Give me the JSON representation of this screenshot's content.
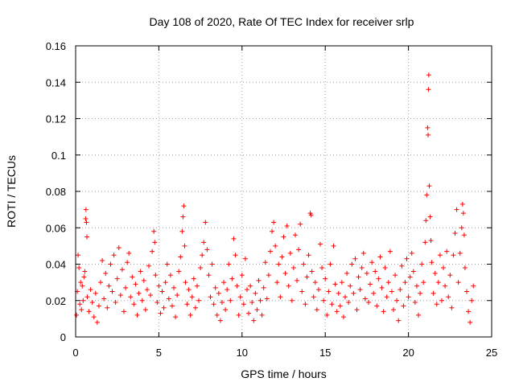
{
  "chart_data": {
    "type": "scatter",
    "title": "Day 108 of 2020, Rate Of TEC Index for receiver srlp",
    "xlabel": "GPS time / hours",
    "ylabel": "ROTI / TECUs",
    "xlim": [
      0,
      25
    ],
    "ylim": [
      0,
      0.16
    ],
    "xticks": [
      0,
      5,
      10,
      15,
      20,
      25
    ],
    "xtick_labels": [
      "0",
      "5",
      "10",
      "15",
      "20",
      "25"
    ],
    "yticks": [
      0,
      0.02,
      0.04,
      0.06,
      0.08,
      0.1,
      0.12,
      0.14,
      0.16
    ],
    "ytick_labels": [
      "0",
      "0.02",
      "0.04",
      "0.06",
      "0.08",
      "0.1",
      "0.12",
      "0.14",
      "0.16"
    ],
    "grid": true,
    "marker": "plus",
    "series": [
      {
        "name": "ROTI",
        "color": "#ff0000",
        "points": [
          [
            0.05,
            0.012
          ],
          [
            0.1,
            0.025
          ],
          [
            0.15,
            0.045
          ],
          [
            0.2,
            0.038
          ],
          [
            0.25,
            0.018
          ],
          [
            0.3,
            0.03
          ],
          [
            0.35,
            0.015
          ],
          [
            0.4,
            0.028
          ],
          [
            0.45,
            0.02
          ],
          [
            0.5,
            0.033
          ],
          [
            0.55,
            0.036
          ],
          [
            0.6,
            0.065
          ],
          [
            0.62,
            0.07
          ],
          [
            0.65,
            0.063
          ],
          [
            0.68,
            0.055
          ],
          [
            0.7,
            0.022
          ],
          [
            0.8,
            0.014
          ],
          [
            0.9,
            0.026
          ],
          [
            1.0,
            0.019
          ],
          [
            1.1,
            0.011
          ],
          [
            1.2,
            0.024
          ],
          [
            1.3,
            0.008
          ],
          [
            1.4,
            0.017
          ],
          [
            1.5,
            0.03
          ],
          [
            1.6,
            0.042
          ],
          [
            1.7,
            0.021
          ],
          [
            1.8,
            0.035
          ],
          [
            1.9,
            0.016
          ],
          [
            2.0,
            0.028
          ],
          [
            2.1,
            0.04
          ],
          [
            2.2,
            0.025
          ],
          [
            2.3,
            0.045
          ],
          [
            2.4,
            0.019
          ],
          [
            2.5,
            0.032
          ],
          [
            2.6,
            0.049
          ],
          [
            2.7,
            0.023
          ],
          [
            2.8,
            0.037
          ],
          [
            2.9,
            0.014
          ],
          [
            3.0,
            0.027
          ],
          [
            3.1,
            0.041
          ],
          [
            3.2,
            0.046
          ],
          [
            3.3,
            0.022
          ],
          [
            3.4,
            0.033
          ],
          [
            3.5,
            0.018
          ],
          [
            3.6,
            0.029
          ],
          [
            3.7,
            0.012
          ],
          [
            3.8,
            0.024
          ],
          [
            3.9,
            0.036
          ],
          [
            4.0,
            0.02
          ],
          [
            4.1,
            0.031
          ],
          [
            4.2,
            0.015
          ],
          [
            4.3,
            0.026
          ],
          [
            4.4,
            0.039
          ],
          [
            4.5,
            0.023
          ],
          [
            4.6,
            0.047
          ],
          [
            4.7,
            0.058
          ],
          [
            4.75,
            0.052
          ],
          [
            4.8,
            0.034
          ],
          [
            4.9,
            0.019
          ],
          [
            5.0,
            0.028
          ],
          [
            5.1,
            0.013
          ],
          [
            5.2,
            0.025
          ],
          [
            5.3,
            0.016
          ],
          [
            5.4,
            0.03
          ],
          [
            5.5,
            0.04
          ],
          [
            5.6,
            0.021
          ],
          [
            5.7,
            0.034
          ],
          [
            5.8,
            0.017
          ],
          [
            5.9,
            0.027
          ],
          [
            6.0,
            0.011
          ],
          [
            6.1,
            0.023
          ],
          [
            6.2,
            0.036
          ],
          [
            6.3,
            0.044
          ],
          [
            6.4,
            0.058
          ],
          [
            6.45,
            0.066
          ],
          [
            6.5,
            0.072
          ],
          [
            6.55,
            0.05
          ],
          [
            6.6,
            0.03
          ],
          [
            6.7,
            0.018
          ],
          [
            6.8,
            0.026
          ],
          [
            6.9,
            0.012
          ],
          [
            7.0,
            0.022
          ],
          [
            7.1,
            0.032
          ],
          [
            7.2,
            0.016
          ],
          [
            7.3,
            0.028
          ],
          [
            7.4,
            0.02
          ],
          [
            7.5,
            0.038
          ],
          [
            7.6,
            0.045
          ],
          [
            7.7,
            0.052
          ],
          [
            7.8,
            0.063
          ],
          [
            7.9,
            0.048
          ],
          [
            8.0,
            0.034
          ],
          [
            8.1,
            0.022
          ],
          [
            8.2,
            0.04
          ],
          [
            8.3,
            0.018
          ],
          [
            8.4,
            0.027
          ],
          [
            8.5,
            0.012
          ],
          [
            8.6,
            0.024
          ],
          [
            8.7,
            0.009
          ],
          [
            8.8,
            0.019
          ],
          [
            8.9,
            0.03
          ],
          [
            9.0,
            0.015
          ],
          [
            9.1,
            0.026
          ],
          [
            9.2,
            0.04
          ],
          [
            9.3,
            0.02
          ],
          [
            9.4,
            0.032
          ],
          [
            9.5,
            0.054
          ],
          [
            9.6,
            0.045
          ],
          [
            9.7,
            0.028
          ],
          [
            9.8,
            0.012
          ],
          [
            9.9,
            0.022
          ],
          [
            10.0,
            0.034
          ],
          [
            10.1,
            0.018
          ],
          [
            10.2,
            0.043
          ],
          [
            10.3,
            0.026
          ],
          [
            10.4,
            0.013
          ],
          [
            10.5,
            0.028
          ],
          [
            10.6,
            0.019
          ],
          [
            10.7,
            0.009
          ],
          [
            10.8,
            0.024
          ],
          [
            10.9,
            0.015
          ],
          [
            11.0,
            0.031
          ],
          [
            11.1,
            0.02
          ],
          [
            11.2,
            0.012
          ],
          [
            11.3,
            0.027
          ],
          [
            11.4,
            0.041
          ],
          [
            11.5,
            0.021
          ],
          [
            11.6,
            0.034
          ],
          [
            11.7,
            0.047
          ],
          [
            11.8,
            0.058
          ],
          [
            11.9,
            0.063
          ],
          [
            12.0,
            0.05
          ],
          [
            12.1,
            0.03
          ],
          [
            12.2,
            0.04
          ],
          [
            12.3,
            0.022
          ],
          [
            12.4,
            0.044
          ],
          [
            12.5,
            0.055
          ],
          [
            12.6,
            0.035
          ],
          [
            12.7,
            0.061
          ],
          [
            12.8,
            0.028
          ],
          [
            12.9,
            0.046
          ],
          [
            13.0,
            0.02
          ],
          [
            13.1,
            0.038
          ],
          [
            13.2,
            0.056
          ],
          [
            13.3,
            0.031
          ],
          [
            13.4,
            0.048
          ],
          [
            13.5,
            0.062
          ],
          [
            13.6,
            0.025
          ],
          [
            13.7,
            0.04
          ],
          [
            13.8,
            0.018
          ],
          [
            13.9,
            0.033
          ],
          [
            14.0,
            0.045
          ],
          [
            14.1,
            0.068
          ],
          [
            14.15,
            0.067
          ],
          [
            14.2,
            0.036
          ],
          [
            14.3,
            0.022
          ],
          [
            14.4,
            0.03
          ],
          [
            14.5,
            0.015
          ],
          [
            14.6,
            0.026
          ],
          [
            14.7,
            0.051
          ],
          [
            14.8,
            0.038
          ],
          [
            14.9,
            0.02
          ],
          [
            15.0,
            0.032
          ],
          [
            15.1,
            0.012
          ],
          [
            15.2,
            0.025
          ],
          [
            15.3,
            0.04
          ],
          [
            15.4,
            0.018
          ],
          [
            15.5,
            0.05
          ],
          [
            15.6,
            0.029
          ],
          [
            15.7,
            0.014
          ],
          [
            15.8,
            0.024
          ],
          [
            15.9,
            0.017
          ],
          [
            16.0,
            0.03
          ],
          [
            16.1,
            0.011
          ],
          [
            16.2,
            0.022
          ],
          [
            16.3,
            0.035
          ],
          [
            16.4,
            0.019
          ],
          [
            16.5,
            0.028
          ],
          [
            16.6,
            0.04
          ],
          [
            16.7,
            0.024
          ],
          [
            16.8,
            0.043
          ],
          [
            16.9,
            0.015
          ],
          [
            17.0,
            0.033
          ],
          [
            17.1,
            0.026
          ],
          [
            17.2,
            0.038
          ],
          [
            17.3,
            0.046
          ],
          [
            17.4,
            0.021
          ],
          [
            17.5,
            0.035
          ],
          [
            17.6,
            0.019
          ],
          [
            17.7,
            0.029
          ],
          [
            17.8,
            0.041
          ],
          [
            17.9,
            0.024
          ],
          [
            18.0,
            0.036
          ],
          [
            18.1,
            0.017
          ],
          [
            18.2,
            0.032
          ],
          [
            18.3,
            0.044
          ],
          [
            18.4,
            0.027
          ],
          [
            18.5,
            0.014
          ],
          [
            18.6,
            0.038
          ],
          [
            18.7,
            0.022
          ],
          [
            18.8,
            0.03
          ],
          [
            18.9,
            0.047
          ],
          [
            19.0,
            0.025
          ],
          [
            19.1,
            0.015
          ],
          [
            19.2,
            0.034
          ],
          [
            19.3,
            0.02
          ],
          [
            19.4,
            0.009
          ],
          [
            19.5,
            0.026
          ],
          [
            19.6,
            0.039
          ],
          [
            19.7,
            0.017
          ],
          [
            19.8,
            0.03
          ],
          [
            19.9,
            0.043
          ],
          [
            20.0,
            0.022
          ],
          [
            20.1,
            0.033
          ],
          [
            20.2,
            0.046
          ],
          [
            20.3,
            0.036
          ],
          [
            20.4,
            0.019
          ],
          [
            20.5,
            0.028
          ],
          [
            20.6,
            0.012
          ],
          [
            20.7,
            0.024
          ],
          [
            20.8,
            0.04
          ],
          [
            20.9,
            0.03
          ],
          [
            21.0,
            0.052
          ],
          [
            21.05,
            0.064
          ],
          [
            21.1,
            0.078
          ],
          [
            21.15,
            0.115
          ],
          [
            21.18,
            0.111
          ],
          [
            21.2,
            0.136
          ],
          [
            21.22,
            0.144
          ],
          [
            21.25,
            0.083
          ],
          [
            21.3,
            0.066
          ],
          [
            21.35,
            0.053
          ],
          [
            21.4,
            0.041
          ],
          [
            21.5,
            0.024
          ],
          [
            21.6,
            0.035
          ],
          [
            21.7,
            0.018
          ],
          [
            21.8,
            0.03
          ],
          [
            21.9,
            0.045
          ],
          [
            22.0,
            0.02
          ],
          [
            22.1,
            0.038
          ],
          [
            22.2,
            0.028
          ],
          [
            22.3,
            0.047
          ],
          [
            22.4,
            0.022
          ],
          [
            22.5,
            0.034
          ],
          [
            22.6,
            0.016
          ],
          [
            22.7,
            0.045
          ],
          [
            22.8,
            0.057
          ],
          [
            22.9,
            0.07
          ],
          [
            23.0,
            0.03
          ],
          [
            23.1,
            0.046
          ],
          [
            23.2,
            0.06
          ],
          [
            23.25,
            0.073
          ],
          [
            23.3,
            0.068
          ],
          [
            23.35,
            0.056
          ],
          [
            23.4,
            0.038
          ],
          [
            23.5,
            0.025
          ],
          [
            23.6,
            0.014
          ],
          [
            23.7,
            0.008
          ],
          [
            23.8,
            0.02
          ],
          [
            23.9,
            0.028
          ]
        ]
      }
    ]
  }
}
